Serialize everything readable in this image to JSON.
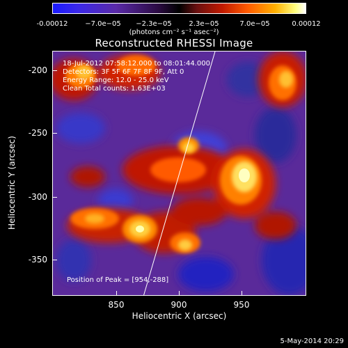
{
  "colorbar": {
    "ticks": [
      "-0.00012",
      "−7.0e−05",
      "−2.3e−05",
      "2.3e−05",
      "7.0e−05",
      "0.00012"
    ],
    "units": "(photons cm⁻² s⁻¹ asec⁻²)"
  },
  "title": "Reconstructed RHESSI Image",
  "annotations": {
    "line1": "18-Jul-2012 07:58:12.000 to 08:01:44.000",
    "line2": "Detectors: 3F 5F 6F 7F 8F 9F, Att 0",
    "line3": "Energy Range: 12.0 - 25.0 keV",
    "line4": "Clean    Total counts: 1.63E+03",
    "peak": "Position of Peak = [954,-288]"
  },
  "axes": {
    "xlabel": "Heliocentric X (arcsec)",
    "ylabel": "Heliocentric Y (arcsec)",
    "xticks": [
      "850",
      "900",
      "950"
    ],
    "yticks": [
      "-200",
      "-250",
      "-300",
      "-350"
    ]
  },
  "timestamp": "5-May-2014 20:29",
  "colors": {
    "background": "#000000",
    "low": "#0000ff",
    "mid": "#000000",
    "high": "#ffffff"
  }
}
